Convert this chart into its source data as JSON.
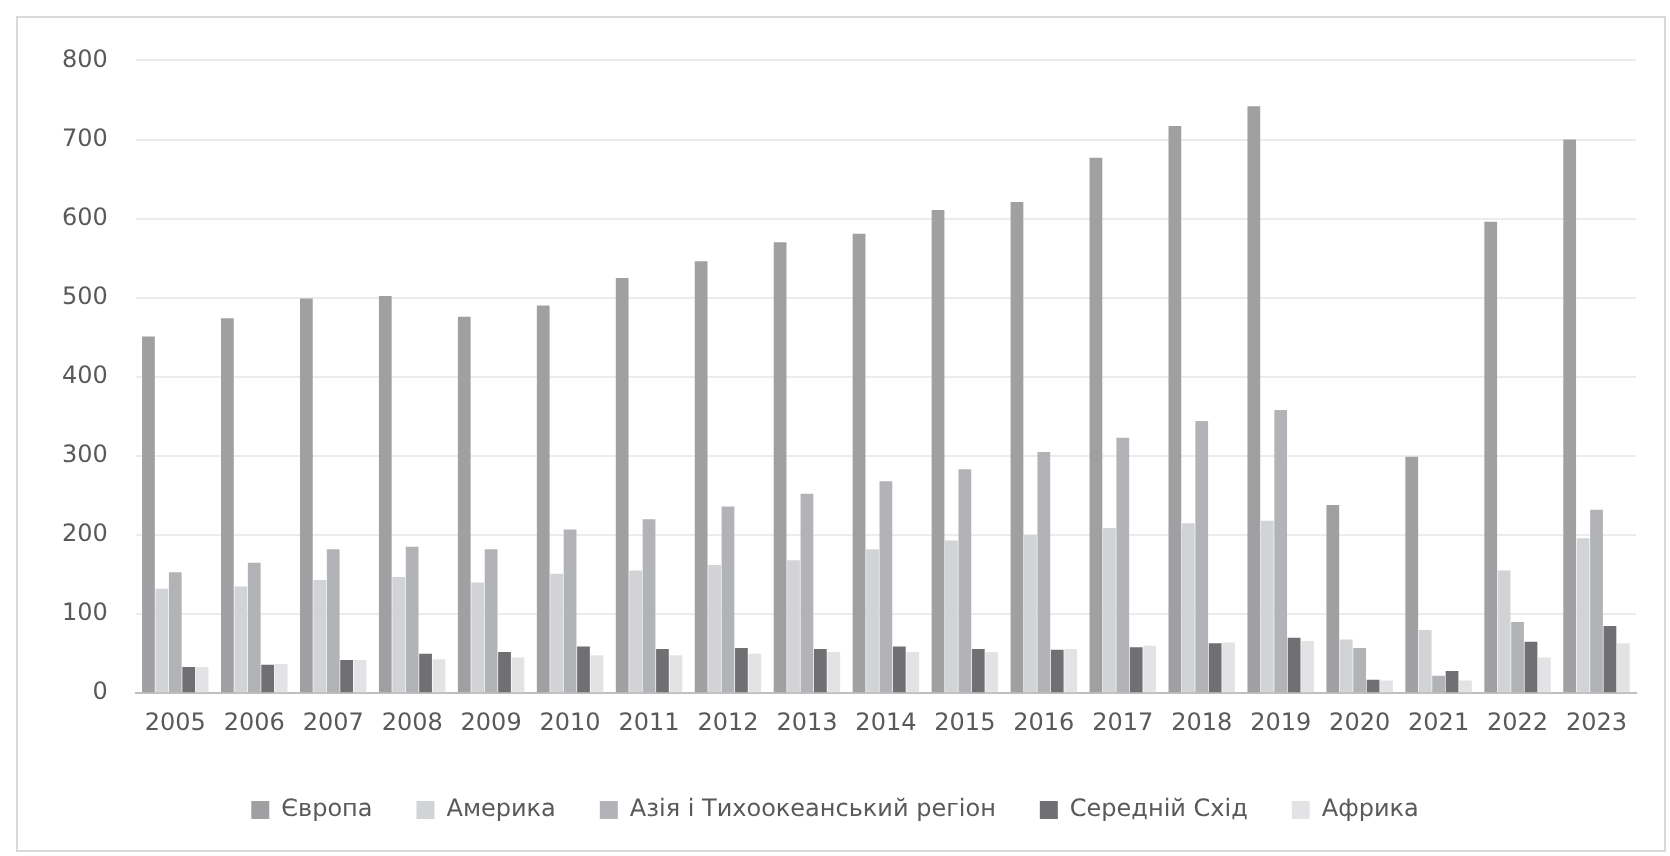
{
  "chart_data": {
    "type": "bar",
    "categories": [
      "2005",
      "2006",
      "2007",
      "2008",
      "2009",
      "2010",
      "2011",
      "2012",
      "2013",
      "2014",
      "2015",
      "2016",
      "2017",
      "2018",
      "2019",
      "2020",
      "2021",
      "2022",
      "2023"
    ],
    "series": [
      {
        "name": "Європа",
        "color": "#a0a0a2",
        "values": [
          451,
          474,
          499,
          502,
          476,
          490,
          525,
          546,
          570,
          581,
          611,
          621,
          677,
          717,
          742,
          238,
          299,
          596,
          700
        ]
      },
      {
        "name": "Америка",
        "color": "#d2d3d5",
        "values": [
          132,
          135,
          143,
          147,
          140,
          151,
          155,
          162,
          168,
          182,
          193,
          200,
          209,
          215,
          218,
          68,
          80,
          155,
          196
        ]
      },
      {
        "name": "Азія і Тихоокеанський регіон",
        "color": "#b2b3b7",
        "values": [
          153,
          165,
          182,
          185,
          182,
          207,
          220,
          236,
          252,
          268,
          283,
          305,
          323,
          344,
          358,
          57,
          22,
          90,
          232
        ]
      },
      {
        "name": "Середній Схід",
        "color": "#707072",
        "values": [
          33,
          36,
          42,
          50,
          52,
          59,
          56,
          57,
          56,
          59,
          56,
          55,
          58,
          63,
          70,
          17,
          28,
          65,
          85
        ]
      },
      {
        "name": "Африка",
        "color": "#e3e3e5",
        "values": [
          33,
          37,
          42,
          43,
          45,
          48,
          48,
          50,
          52,
          52,
          52,
          56,
          60,
          64,
          66,
          16,
          16,
          45,
          63
        ]
      }
    ],
    "ylim": [
      0,
      800
    ],
    "yticks": [
      0,
      100,
      200,
      300,
      400,
      500,
      600,
      700,
      800
    ],
    "grid": "y",
    "legend": "bottom"
  }
}
